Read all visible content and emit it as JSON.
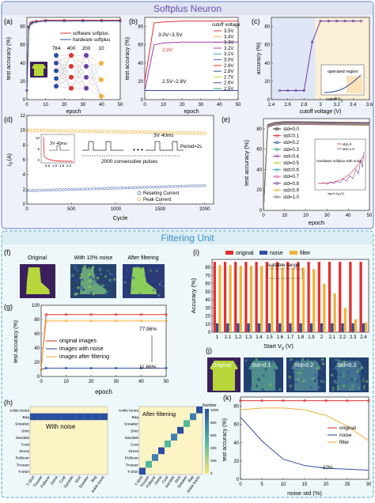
{
  "sections": {
    "top_title": "Softplus Neuron",
    "bottom_title": "Filtering Unit"
  },
  "colors": {
    "top_bg": "#dfe4f1",
    "bottom_bg": "#dbeef4",
    "title_top": "#6a4fae",
    "title_bottom": "#3c8ec2",
    "border_top": "#7b8fd6",
    "border_bottom": "#6bb7d9",
    "red": "#e0322f",
    "blue": "#2f4f9e",
    "orange": "#f2b03a",
    "olive": "#cfcf3b",
    "purple": "#6e3ea6"
  },
  "panels": {
    "a": {
      "letter": "(a)",
      "ylabel": "test accuracy (%)",
      "xlabel": "epoch",
      "yticks": [
        "0",
        "20",
        "40",
        "60",
        "80"
      ],
      "xticks": [
        "0",
        "10",
        "20",
        "30",
        "40",
        "50"
      ],
      "legend": [
        "software softplus",
        "hardware softplus"
      ],
      "layers": [
        "784",
        "400",
        "200",
        "10"
      ]
    },
    "b": {
      "letter": "(b)",
      "ylabel": "test accuracy (%)",
      "xlabel": "epoch",
      "yticks": [
        "0",
        "20",
        "40",
        "60",
        "80"
      ],
      "xticks": [
        "0",
        "10",
        "20",
        "30",
        "40",
        "50"
      ],
      "legend_title": "cutoff voltage",
      "legend": [
        "3.5V",
        "3.4V",
        "3.3V",
        "3.2V",
        "3.1V",
        "3.0V",
        "2.9V",
        "2.8V",
        "2.7V",
        "2.6V",
        "2.5V"
      ],
      "ann_high": "3.0V~3.5V",
      "ann_mid": "2.9V",
      "ann_low": "2.5V~2.8V"
    },
    "c": {
      "letter": "(c)",
      "ylabel": "accuracy (%)",
      "xlabel": "cutoff voltage (V)",
      "yticks": [
        "0",
        "20",
        "40",
        "60",
        "80"
      ],
      "xticks": [
        "2.4",
        "2.6",
        "2.8",
        "3",
        "3.2",
        "3.4",
        "3.6"
      ],
      "inset_label": "operated region",
      "inset_cutoff": "cutoff V",
      "inset_sub": "g"
    },
    "d": {
      "letter": "(d)",
      "ylabel": "I",
      "ylabel_sub": "d",
      "ylabel_unit": " (A)",
      "xlabel": "Cycle",
      "yticks": [
        "0",
        "2",
        "4",
        "6",
        "8",
        "10",
        "12"
      ],
      "xticks": [
        "0",
        "500",
        "1000",
        "1500",
        "2000"
      ],
      "pulse": "3V 40ms",
      "pulse_right": "3V 40ms",
      "period": "Period=2s",
      "consecutive": "2000 consecutive pulses",
      "legend": [
        "Reseting Current",
        "Peak Current"
      ],
      "inset_yticks": [
        "0",
        "5",
        "10"
      ],
      "inset_xticks": [
        "0.5",
        "1.0",
        "1.5",
        "2.0"
      ]
    },
    "e": {
      "letter": "(e)",
      "ylabel": "test accuracy (%)",
      "xlabel": "epoch",
      "yticks": [
        "0",
        "20",
        "40",
        "60",
        "80"
      ],
      "xticks": [
        "0",
        "10",
        "20",
        "30",
        "40",
        "50"
      ],
      "legend": [
        "std=0.0",
        "std=0.1",
        "std=0.2",
        "std=0.3",
        "std=0.4",
        "std=0.5",
        "std=0.6",
        "std=0.7",
        "std=0.8",
        "std=0.9",
        "std=1.0"
      ],
      "inset_legend": [
        "std=0",
        "std=1.0"
      ],
      "inset_note": "Hardware softplus with noise",
      "inset_xlabel": "input Vg (V)"
    },
    "f": {
      "letter": "(f)",
      "labels": [
        "Original",
        "With 10% noise",
        "After filtering"
      ]
    },
    "g": {
      "letter": "(g)",
      "ylabel": "test accuracy (%)",
      "xlabel": "epoch",
      "yticks": [
        "0",
        "20",
        "40",
        "60",
        "80",
        "100"
      ],
      "xticks": [
        "0",
        "10",
        "20",
        "30",
        "40",
        "50"
      ],
      "legend": [
        "original images",
        "images with noise",
        "images after filtering"
      ],
      "ann_filter": "77.96%",
      "ann_noise": "11.66%"
    },
    "h": {
      "letter": "(h)",
      "classes": [
        "Ankle boots",
        "Bag",
        "Sneaker",
        "Shirt",
        "Sandals",
        "Coat",
        "Dress",
        "Pullover",
        "Trouser",
        "T-Shirt"
      ],
      "left_title": "With noise",
      "right_title": "After filtering",
      "colorbar_title": "Number",
      "colorbar_ticks": [
        "1000",
        "800",
        "600",
        "400",
        "200",
        "0"
      ]
    },
    "i": {
      "letter": "(i)",
      "ylabel": "Accuracy (%)",
      "xlabel": "Start V",
      "xlabel_sub": "g",
      "xlabel_unit": " (V)",
      "yticks": [
        "0",
        "10",
        "20",
        "30",
        "40",
        "50",
        "60",
        "70",
        "80"
      ],
      "legend": [
        "original",
        "noise",
        "filter"
      ],
      "suitable": "suitable range",
      "xticks": [
        "1",
        "1.1",
        "1.2",
        "1.3",
        "1.4",
        "1.5",
        "1.6",
        "1.7",
        "1.8",
        "1.9",
        "2",
        "2.1",
        "2.2",
        "2.3",
        "2.4"
      ]
    },
    "j": {
      "letter": "(j)",
      "labels": [
        "Original",
        "Std=0.1",
        "Std=0.2",
        "Std=0.3"
      ]
    },
    "k": {
      "letter": "(k)",
      "ylabel": "test accuracy (%)",
      "xlabel": "noise std (%)",
      "yticks": [
        "0",
        "20",
        "40",
        "60",
        "80"
      ],
      "xticks": [
        "0",
        "5",
        "10",
        "15",
        "20",
        "25",
        "30"
      ],
      "legend": [
        "original",
        "noise",
        "filter"
      ],
      "ann": "~10%"
    }
  },
  "chart_data": [
    {
      "panel": "a",
      "type": "line",
      "x": [
        0,
        1,
        2,
        3,
        5,
        10,
        20,
        30,
        40,
        50
      ],
      "series": [
        {
          "name": "software softplus",
          "values": [
            10,
            80,
            84,
            85,
            86,
            87,
            87,
            87,
            87,
            87
          ]
        },
        {
          "name": "hardware softplus",
          "values": [
            10,
            79,
            83,
            84,
            85,
            86,
            86,
            86,
            86,
            86
          ]
        }
      ],
      "xlim": [
        0,
        50
      ],
      "ylim": [
        0,
        90
      ]
    },
    {
      "panel": "b",
      "type": "line",
      "x": [
        0,
        5,
        10,
        20,
        30,
        40,
        50
      ],
      "series": [
        {
          "name": "3.0V~3.5V",
          "values": [
            20,
            84,
            85,
            86,
            86,
            86,
            86
          ]
        },
        {
          "name": "2.9V",
          "values": [
            10,
            60,
            62,
            63,
            63,
            63,
            63
          ]
        },
        {
          "name": "2.5V~2.8V",
          "values": [
            10,
            10,
            10,
            10,
            10,
            10,
            10
          ]
        }
      ],
      "xlim": [
        0,
        50
      ],
      "ylim": [
        0,
        90
      ]
    },
    {
      "panel": "c",
      "type": "line",
      "x": [
        2.5,
        2.6,
        2.7,
        2.8,
        2.9,
        3.0,
        3.1,
        3.2,
        3.3,
        3.4,
        3.5
      ],
      "values": [
        10,
        10,
        10,
        10,
        63,
        86,
        86,
        86,
        86,
        86,
        86
      ],
      "xlim": [
        2.4,
        3.6
      ],
      "ylim": [
        0,
        90
      ]
    },
    {
      "panel": "d",
      "type": "scatter",
      "xlim": [
        0,
        2100
      ],
      "ylim": [
        0,
        12
      ],
      "series": [
        {
          "name": "Reseting Current",
          "values": [
            1.8,
            2.5
          ]
        },
        {
          "name": "Peak Current",
          "values": [
            10.0,
            9.6
          ]
        }
      ]
    },
    {
      "panel": "e",
      "type": "line",
      "x": [
        0,
        2,
        5,
        10,
        50
      ],
      "values": [
        0,
        84,
        86,
        87,
        86
      ],
      "xlim": [
        0,
        50
      ],
      "ylim": [
        0,
        90
      ]
    },
    {
      "panel": "g",
      "type": "line",
      "x": [
        0,
        2,
        10,
        20,
        30,
        40,
        50
      ],
      "series": [
        {
          "name": "original images",
          "values": [
            10,
            87,
            87,
            87,
            87,
            87,
            87
          ]
        },
        {
          "name": "images with noise",
          "values": [
            10,
            11.66,
            11.66,
            11.66,
            11.66,
            11.66,
            11.66
          ]
        },
        {
          "name": "images after filtering",
          "values": [
            10,
            77.96,
            77.96,
            77.96,
            77.96,
            77.96,
            77.96
          ]
        }
      ],
      "xlim": [
        0,
        50
      ],
      "ylim": [
        0,
        100
      ]
    },
    {
      "panel": "i",
      "type": "bar",
      "categories": [
        "1",
        "1.1",
        "1.2",
        "1.3",
        "1.4",
        "1.5",
        "1.6",
        "1.7",
        "1.8",
        "1.9",
        "2",
        "2.1",
        "2.2",
        "2.3",
        "2.4"
      ],
      "series": [
        {
          "name": "original",
          "values": [
            87,
            87,
            87,
            87,
            87,
            87,
            87,
            87,
            87,
            87,
            87,
            87,
            87,
            87,
            87
          ]
        },
        {
          "name": "noise",
          "values": [
            11,
            11,
            11,
            11,
            11,
            11,
            11,
            11,
            11,
            11,
            11,
            11,
            11,
            11,
            11
          ]
        },
        {
          "name": "filter",
          "values": [
            83,
            83,
            82,
            82,
            82,
            82,
            80,
            80,
            80,
            78,
            60,
            48,
            30,
            16,
            12
          ]
        }
      ],
      "ylim": [
        0,
        90
      ]
    },
    {
      "panel": "k",
      "type": "line",
      "x": [
        0,
        5,
        10,
        15,
        20,
        25,
        30
      ],
      "series": [
        {
          "name": "original",
          "values": [
            86,
            86,
            86,
            86,
            86,
            86,
            86
          ]
        },
        {
          "name": "noise",
          "values": [
            68,
            42,
            22,
            15,
            12,
            11,
            10
          ]
        },
        {
          "name": "filter",
          "values": [
            76,
            78,
            78,
            76,
            70,
            58,
            42
          ]
        }
      ],
      "xlim": [
        0,
        30
      ],
      "ylim": [
        0,
        90
      ]
    }
  ]
}
